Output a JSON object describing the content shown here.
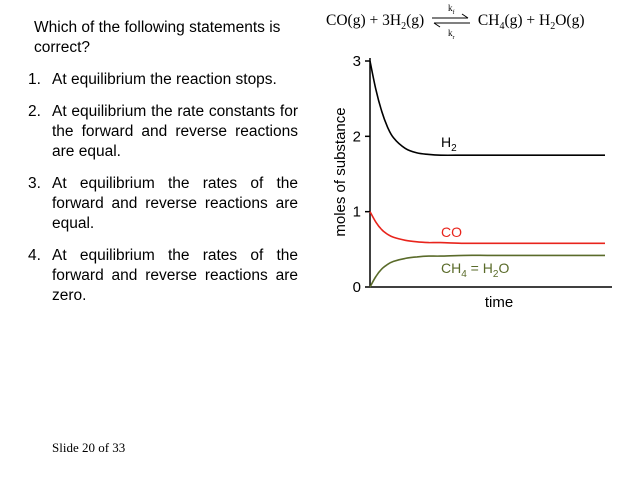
{
  "question": "Which of the following statements is correct?",
  "options": [
    {
      "num": "1.",
      "text": "At equilibrium the reaction stops."
    },
    {
      "num": "2.",
      "text": "At equilibrium the rate constants for the forward and reverse reactions are equal."
    },
    {
      "num": "3.",
      "text": "At equilibrium the rates of the forward and reverse reactions are equal."
    },
    {
      "num": "4.",
      "text": "At equilibrium the rates of the forward and reverse reactions are zero."
    }
  ],
  "equation": {
    "reactant1": "CO(g)",
    "plus1": "+",
    "coef_h2": "3H",
    "h2_sub": "2",
    "h2_state": "(g)",
    "k_forward": "k",
    "k_forward_sub": "f",
    "k_reverse": "k",
    "k_reverse_sub": "r",
    "product1": "CH",
    "product1_sub": "4",
    "product1_state": "(g)",
    "plus2": "+",
    "product2": "H",
    "product2_sub": "2",
    "product2_state": "O(g)"
  },
  "slide_number": "Slide 20 of 33",
  "chart_data": {
    "type": "line",
    "xlabel": "time",
    "ylabel": "moles of substance",
    "ylim": [
      0,
      3
    ],
    "xlim": [
      0,
      10
    ],
    "yticks": [
      "0",
      "1",
      "2",
      "3"
    ],
    "grid": false,
    "series": [
      {
        "name": "H2",
        "label_main": "H",
        "label_sub": "2",
        "color": "#000000",
        "x": [
          0,
          0.25,
          0.5,
          0.75,
          1,
          1.5,
          2,
          2.5,
          3,
          4,
          5,
          6,
          7,
          8,
          9,
          10
        ],
        "y": [
          3.0,
          2.62,
          2.33,
          2.12,
          1.98,
          1.84,
          1.78,
          1.76,
          1.75,
          1.75,
          1.75,
          1.75,
          1.75,
          1.75,
          1.75,
          1.75
        ]
      },
      {
        "name": "CO",
        "label_main": "CO",
        "label_sub": "",
        "color": "#e8241c",
        "x": [
          0,
          0.25,
          0.5,
          0.75,
          1,
          1.5,
          2,
          2.5,
          3,
          4,
          5,
          6,
          7,
          8,
          9,
          10
        ],
        "y": [
          1.0,
          0.86,
          0.76,
          0.7,
          0.66,
          0.62,
          0.6,
          0.59,
          0.59,
          0.58,
          0.58,
          0.58,
          0.58,
          0.58,
          0.58,
          0.58
        ]
      },
      {
        "name": "CH4 = H2O",
        "label_main": "CH",
        "label_sub": "4",
        "label_rest": " = H",
        "label_sub2": "2",
        "label_end": "O",
        "color": "#5a6b2a",
        "x": [
          0,
          0.25,
          0.5,
          0.75,
          1,
          1.5,
          2,
          2.5,
          3,
          4,
          5,
          6,
          7,
          8,
          9,
          10
        ],
        "y": [
          0.0,
          0.14,
          0.24,
          0.3,
          0.34,
          0.38,
          0.4,
          0.41,
          0.41,
          0.42,
          0.42,
          0.42,
          0.42,
          0.42,
          0.42,
          0.42
        ]
      }
    ]
  }
}
